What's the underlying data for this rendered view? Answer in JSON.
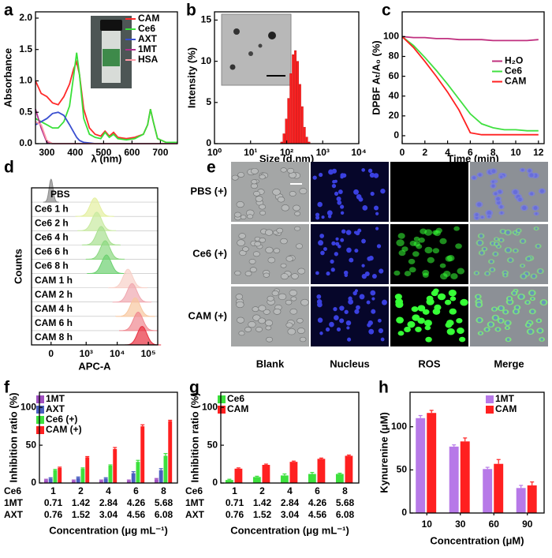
{
  "chart_data": [
    {
      "panel": "a",
      "type": "line",
      "ylabel": "Absorbance",
      "xlabel": "λ (nm)",
      "xlim": [
        260,
        760
      ],
      "xticks": [
        300,
        400,
        500,
        600,
        700
      ],
      "ylim": [
        0,
        2.1
      ],
      "yticks": [
        {
          "value": 0,
          "label": "0.0"
        },
        {
          "value": 0.5,
          "label": "0.5"
        },
        {
          "value": 1,
          "label": "1.0"
        },
        {
          "value": 1.5,
          "label": "1.5"
        },
        {
          "value": 2,
          "label": "2.0"
        }
      ],
      "legend": "upper right",
      "x": [
        260,
        280,
        300,
        320,
        340,
        360,
        380,
        395,
        405,
        415,
        430,
        450,
        470,
        490,
        505,
        520,
        535,
        550,
        580,
        610,
        640,
        655,
        665,
        675,
        690,
        720,
        760
      ],
      "series": [
        {
          "name": "CAM",
          "color": "#ff2a2a",
          "values": [
            1.0,
            0.8,
            0.75,
            0.65,
            0.62,
            0.75,
            0.95,
            1.2,
            1.3,
            1.1,
            0.55,
            0.25,
            0.15,
            0.12,
            0.2,
            0.12,
            0.18,
            0.1,
            0.08,
            0.1,
            0.15,
            0.3,
            0.55,
            0.35,
            0.08,
            0.02,
            0.02
          ]
        },
        {
          "name": "Ce6",
          "color": "#39e039",
          "values": [
            0.4,
            0.35,
            0.3,
            0.25,
            0.25,
            0.35,
            0.6,
            1.1,
            1.45,
            1.1,
            0.4,
            0.15,
            0.1,
            0.08,
            0.18,
            0.1,
            0.15,
            0.08,
            0.06,
            0.08,
            0.15,
            0.3,
            0.55,
            0.35,
            0.08,
            0.02,
            0.02
          ]
        },
        {
          "name": "AXT",
          "color": "#3a4fd0",
          "values": [
            0.3,
            0.35,
            0.4,
            0.48,
            0.5,
            0.45,
            0.3,
            0.18,
            0.1,
            0.05,
            0.02,
            0.01,
            0,
            0,
            0,
            0,
            0,
            0,
            0,
            0,
            0,
            0,
            0,
            0,
            0,
            0,
            0
          ]
        },
        {
          "name": "1MT",
          "color": "#b0308f",
          "values": [
            0.55,
            0.25,
            0.02,
            0,
            0,
            0,
            0,
            0,
            0,
            0,
            0,
            0,
            0,
            0,
            0,
            0,
            0,
            0,
            0,
            0,
            0,
            0,
            0,
            0,
            0,
            0,
            0
          ]
        },
        {
          "name": "HSA",
          "color": "#ff9aa8",
          "values": [
            0.35,
            0.3,
            0.05,
            0,
            0,
            0,
            0,
            0,
            0,
            0,
            0,
            0,
            0,
            0,
            0,
            0,
            0,
            0,
            0,
            0,
            0,
            0,
            0,
            0,
            0,
            0,
            0
          ]
        }
      ]
    },
    {
      "panel": "b",
      "type": "histogram",
      "ylabel": "Intensity (%)",
      "xlabel": "Size (d.nm)",
      "xscale": "log",
      "xlim": [
        1,
        10000
      ],
      "xticks": [
        {
          "value": 1,
          "label": "10⁰"
        },
        {
          "value": 10,
          "label": "10¹"
        },
        {
          "value": 100,
          "label": "10²"
        },
        {
          "value": 1000,
          "label": "10³"
        },
        {
          "value": 10000,
          "label": "10⁴"
        }
      ],
      "ylim": [
        0,
        16
      ],
      "yticks": [
        0,
        5,
        10,
        15
      ],
      "color": "#ff2020",
      "bins": [
        68.1,
        78.8,
        91.3,
        105.7,
        122.4,
        141.8,
        164.2,
        190.1,
        220.2,
        255.0,
        295.3,
        342.0,
        396.1,
        458.7
      ],
      "values": [
        0.2,
        1.2,
        3.0,
        5.5,
        8.5,
        10.8,
        11.3,
        10.0,
        7.2,
        4.5,
        2.0,
        0.8,
        0.2
      ]
    },
    {
      "panel": "c",
      "type": "line",
      "ylabel": "DPBF Aₜ/A₀ (%)",
      "xlabel": "Time (min)",
      "xlim": [
        0,
        12.5
      ],
      "xticks": [
        0,
        2,
        4,
        6,
        8,
        10,
        12
      ],
      "ylim": [
        -8,
        125
      ],
      "yticks": [
        0,
        20,
        40,
        60,
        80,
        100
      ],
      "legend": "center right",
      "x": [
        0,
        1,
        2,
        3,
        4,
        5,
        6,
        7,
        8,
        9,
        10,
        11,
        12
      ],
      "series": [
        {
          "name": "H₂O",
          "color": "#c0307f",
          "values": [
            100,
            99,
            99,
            98,
            98,
            97,
            97,
            97,
            96,
            96,
            96,
            96,
            97
          ]
        },
        {
          "name": "Ce6",
          "color": "#40e040",
          "values": [
            100,
            91,
            79,
            66,
            52,
            37,
            22,
            12,
            8,
            6,
            6,
            5,
            5
          ]
        },
        {
          "name": "CAM",
          "color": "#ff2020",
          "values": [
            100,
            89,
            75,
            60,
            44,
            26,
            3,
            1,
            1,
            1,
            1,
            1,
            1
          ]
        }
      ]
    },
    {
      "panel": "d",
      "type": "flow",
      "ylabel": "Counts",
      "xlabel": "APC-A",
      "xscale": "biexponential",
      "xlim": [
        -300,
        200000
      ],
      "xticks": [
        0,
        {
          "value": 1000,
          "label": "10³"
        },
        {
          "value": 10000,
          "label": "10⁴"
        },
        {
          "value": 100000,
          "label": "10⁵"
        }
      ],
      "series": [
        {
          "name": "PBS",
          "color": "#8a8a8a",
          "value": 0
        },
        {
          "name": "Ce6 1 h",
          "color": "#e4f0a0",
          "value": 1900
        },
        {
          "name": "Ce6 2 h",
          "color": "#c8eaa0",
          "value": 2200
        },
        {
          "name": "Ce6 4 h",
          "color": "#a8e090",
          "value": 3050
        },
        {
          "name": "Ce6 6 h",
          "color": "#8cd880",
          "value": 4100
        },
        {
          "name": "Ce6 8 h",
          "color": "#6cd070",
          "value": 4500
        },
        {
          "name": "CAM 1 h",
          "color": "#f8d0c8",
          "value": 22000
        },
        {
          "name": "CAM 2 h",
          "color": "#f0a8b0",
          "value": 30000
        },
        {
          "name": "CAM 4 h",
          "color": "#f8c8a0",
          "value": 38000
        },
        {
          "name": "CAM 6 h",
          "color": "#f08890",
          "value": 47000
        },
        {
          "name": "CAM 8 h",
          "color": "#e83040",
          "value": 63000
        }
      ]
    },
    {
      "panel": "f",
      "type": "bar",
      "ylabel": "Inhibition ratio (%)",
      "xlabel": "Concentration (μg mL⁻¹)",
      "ylim": [
        0,
        120
      ],
      "yticks": [
        0,
        50,
        100
      ],
      "legend": "upper left",
      "category_rows": [
        {
          "name": "Ce6",
          "labels": [
            "1",
            "2",
            "4",
            "6",
            "8"
          ]
        },
        {
          "name": "1MT",
          "labels": [
            "0.71",
            "1.42",
            "2.84",
            "4.26",
            "5.68"
          ]
        },
        {
          "name": "AXT",
          "labels": [
            "0.76",
            "1.52",
            "3.04",
            "4.56",
            "6.08"
          ]
        }
      ],
      "series": [
        {
          "name": "1MT",
          "color": "#a050c0",
          "values": [
            4,
            3,
            3,
            3,
            5
          ],
          "errors": [
            1,
            1,
            1,
            1,
            1
          ]
        },
        {
          "name": "AXT",
          "color": "#4a5fc0",
          "values": [
            6,
            7,
            6,
            13,
            17
          ],
          "errors": [
            1,
            1,
            1,
            2,
            2
          ]
        },
        {
          "name": "Ce6 (+)",
          "color": "#3de03d",
          "values": [
            17,
            19,
            23,
            28,
            36
          ],
          "errors": [
            1,
            1,
            1,
            2,
            3
          ]
        },
        {
          "name": "CAM (+)",
          "color": "#ff2020",
          "values": [
            20,
            34,
            45,
            75,
            82
          ],
          "errors": [
            1,
            1,
            2,
            2,
            1
          ]
        }
      ]
    },
    {
      "panel": "g",
      "type": "bar",
      "ylabel": "Inhibition ratio (%)",
      "xlabel": "Concentration (μg mL⁻¹)",
      "ylim": [
        0,
        120
      ],
      "yticks": [
        0,
        50,
        100
      ],
      "legend": "upper left",
      "category_rows": [
        {
          "name": "Ce6",
          "labels": [
            "1",
            "2",
            "4",
            "6",
            "8"
          ]
        },
        {
          "name": "1MT",
          "labels": [
            "0.71",
            "1.42",
            "2.84",
            "4.26",
            "5.68"
          ]
        },
        {
          "name": "AXT",
          "labels": [
            "0.76",
            "1.52",
            "3.04",
            "4.56",
            "6.08"
          ]
        }
      ],
      "series": [
        {
          "name": "Ce6",
          "color": "#3de03d",
          "values": [
            4,
            8,
            10,
            12,
            12
          ],
          "errors": [
            1,
            1,
            2,
            2,
            1
          ]
        },
        {
          "name": "CAM",
          "color": "#ff2020",
          "values": [
            19,
            24,
            28,
            32,
            36
          ],
          "errors": [
            1,
            1,
            1,
            1,
            1
          ]
        }
      ]
    },
    {
      "panel": "h",
      "type": "bar",
      "ylabel": "Kynurenine (μM)",
      "xlabel": "Concentration (μM)",
      "ylim": [
        0,
        140
      ],
      "yticks": [
        0,
        50,
        100
      ],
      "legend": "upper right",
      "categories": [
        "10",
        "30",
        "60",
        "90"
      ],
      "series": [
        {
          "name": "1MT",
          "color": "#b779e8",
          "values": [
            110,
            77,
            51,
            29
          ],
          "errors": [
            3,
            2,
            2,
            3
          ]
        },
        {
          "name": "CAM",
          "color": "#ff2020",
          "values": [
            116,
            83,
            57,
            32
          ],
          "errors": [
            3,
            4,
            5,
            4
          ]
        }
      ]
    }
  ],
  "microscopy": {
    "panel": "e",
    "rows": [
      "PBS (+)",
      "Ce6 (+)",
      "CAM (+)"
    ],
    "columns": [
      "Blank",
      "Nucleus",
      "ROS",
      "Merge"
    ]
  }
}
